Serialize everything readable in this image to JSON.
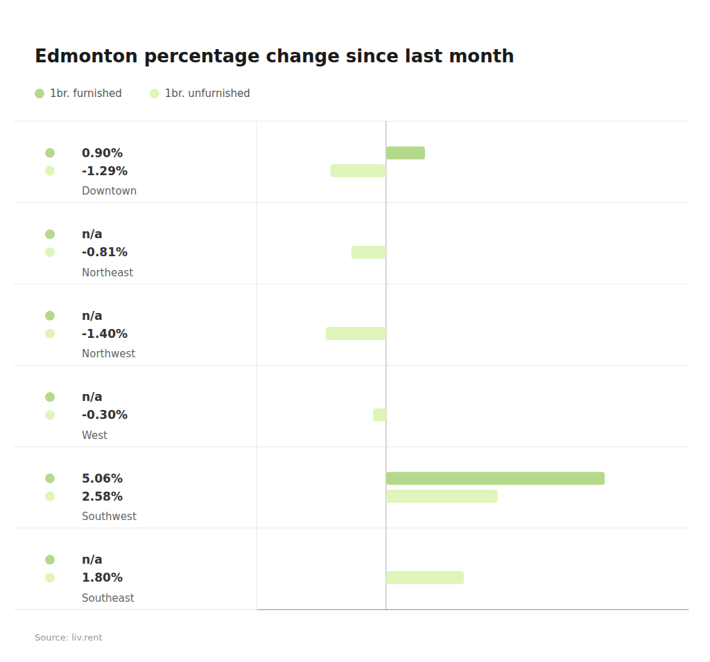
{
  "chart_data": {
    "type": "bar",
    "orientation": "horizontal",
    "title": "Edmonton percentage change since last month",
    "categories": [
      "Downtown",
      "Northeast",
      "Northwest",
      "West",
      "Southwest",
      "Southeast"
    ],
    "series": [
      {
        "name": "1br. furnished",
        "color": "#b5d98a",
        "values": [
          0.9,
          null,
          null,
          null,
          5.06,
          null
        ],
        "value_labels": [
          "0.90%",
          "n/a",
          "n/a",
          "n/a",
          "5.06%",
          "n/a"
        ]
      },
      {
        "name": "1br. unfurnished",
        "color": "#dff5bb",
        "values": [
          -1.29,
          -0.81,
          -1.4,
          -0.3,
          2.58,
          1.8
        ],
        "value_labels": [
          "-1.29%",
          "-0.81%",
          "-1.40%",
          "-0.30%",
          "2.58%",
          "1.80%"
        ]
      }
    ],
    "xlim": [
      -3.0,
      7.0
    ],
    "data_labels": true,
    "tick_labels": "y",
    "legend": "top",
    "annotations": [
      "Source: liv.rent"
    ]
  }
}
